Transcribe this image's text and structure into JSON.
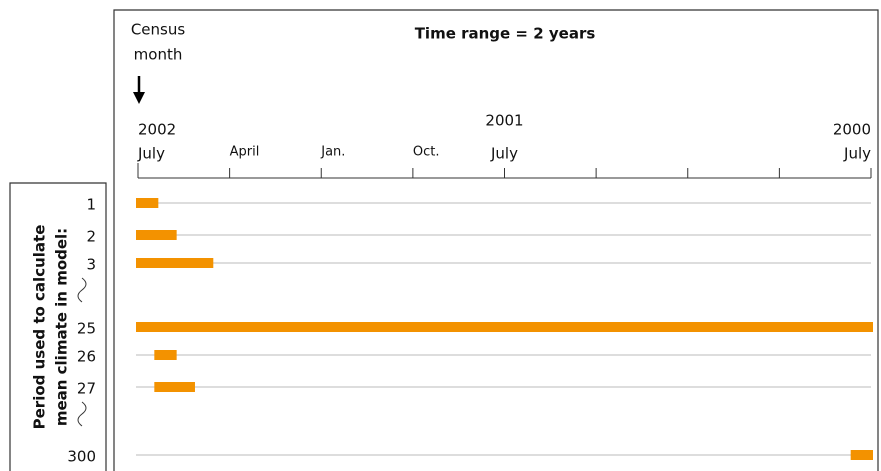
{
  "chart_data": {
    "type": "timeline",
    "title": "Time range = 2 years",
    "census_label": [
      "Census",
      "month"
    ],
    "y_label": [
      "Period used to calculate",
      "mean climate in model:"
    ],
    "xlim": [
      0,
      24
    ],
    "xticks": [
      0,
      3,
      6,
      9,
      12,
      15,
      18,
      21,
      24
    ],
    "tick_labels": [
      {
        "value": 0,
        "label": "July"
      },
      {
        "value": 3,
        "label": "April"
      },
      {
        "value": 6,
        "label": "Jan."
      },
      {
        "value": 9,
        "label": "Oct."
      },
      {
        "value": 12,
        "label": "July"
      },
      {
        "value": 24,
        "label": "July"
      }
    ],
    "year_labels": [
      {
        "value": 0,
        "label": "2002"
      },
      {
        "value": 12,
        "label": "2001"
      },
      {
        "value": 24,
        "label": "2000"
      }
    ],
    "color": "#f39200",
    "rows": [
      {
        "name": "1",
        "start": 0,
        "end": 0.6
      },
      {
        "name": "2",
        "start": 0,
        "end": 1.2
      },
      {
        "name": "3",
        "start": 0,
        "end": 2.4
      },
      {
        "name": "25",
        "start": 0,
        "end": 24
      },
      {
        "name": "26",
        "start": 0.6,
        "end": 1.2
      },
      {
        "name": "27",
        "start": 0.6,
        "end": 1.8
      },
      {
        "name": "300",
        "start": 23.4,
        "end": 24
      }
    ]
  }
}
